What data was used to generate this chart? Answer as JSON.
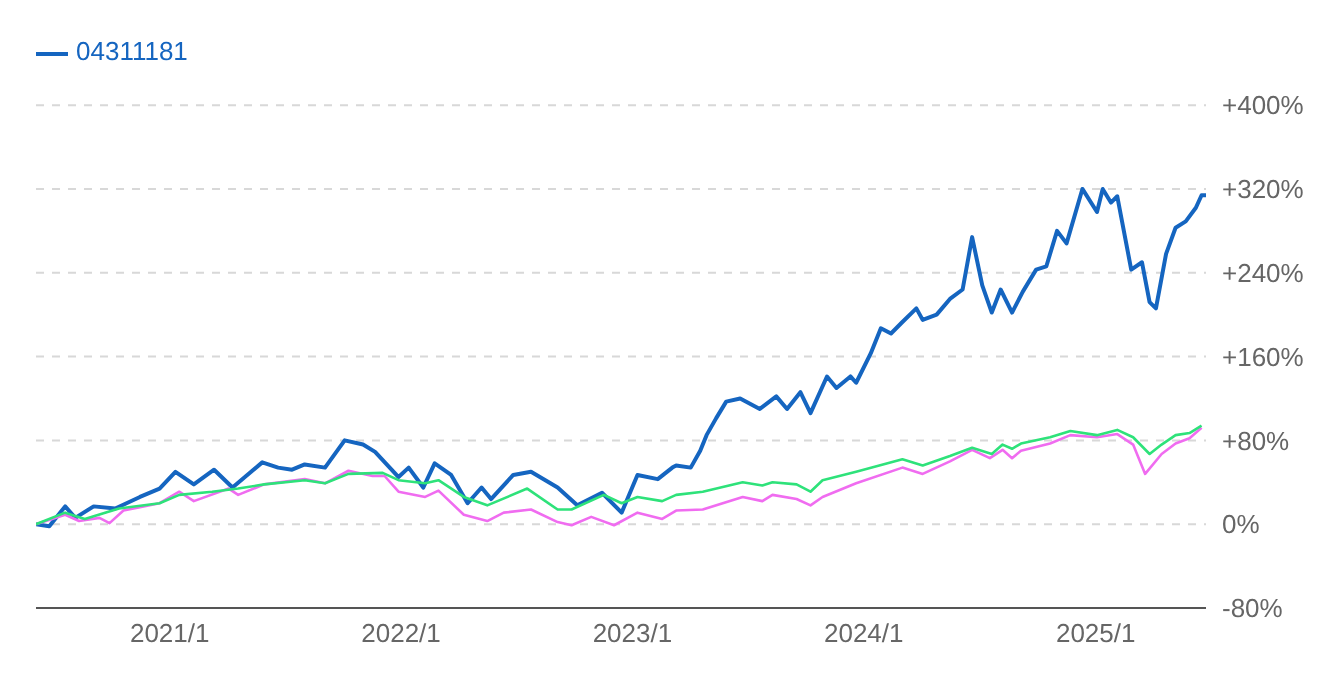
{
  "chart_data": {
    "type": "line",
    "xlim": [
      "2020-06-04",
      "2025-06-24"
    ],
    "xticks": [
      {
        "value": "2021-01",
        "label": "2021/1"
      },
      {
        "value": "2022-01",
        "label": "2022/1"
      },
      {
        "value": "2023-01",
        "label": "2023/1"
      },
      {
        "value": "2024-01",
        "label": "2024/1"
      },
      {
        "value": "2025-01",
        "label": "2025/1"
      }
    ],
    "ylim": [
      -80,
      400
    ],
    "yticks": [
      {
        "value": -80,
        "label": "-80%"
      },
      {
        "value": 0,
        "label": "0%"
      },
      {
        "value": 80,
        "label": "+80%"
      },
      {
        "value": 160,
        "label": "+160%"
      },
      {
        "value": 240,
        "label": "+240%"
      },
      {
        "value": 320,
        "label": "+320%"
      },
      {
        "value": 400,
        "label": "+400%"
      }
    ],
    "grid": "y",
    "legend": "top left",
    "marker": "none",
    "line_style": "solid",
    "series": [
      {
        "name": "04311181",
        "color": "#1565c0",
        "x": [
          "2020-06-04",
          "2020-06-25",
          "2020-07-20",
          "2020-08-05",
          "2020-09-03",
          "2020-10-07",
          "2020-11-15",
          "2020-12-16",
          "2021-01-10",
          "2021-02-08",
          "2021-03-12",
          "2021-04-10",
          "2021-05-27",
          "2021-06-21",
          "2021-07-13",
          "2021-08-02",
          "2021-09-03",
          "2021-10-04",
          "2021-11-02",
          "2021-11-21",
          "2021-12-28",
          "2022-01-13",
          "2022-02-05",
          "2022-02-23",
          "2022-03-21",
          "2022-04-16",
          "2022-05-08",
          "2022-05-23",
          "2022-06-27",
          "2022-07-25",
          "2022-09-05",
          "2022-10-06",
          "2022-11-14",
          "2022-12-15",
          "2023-01-09",
          "2023-02-10",
          "2023-03-05",
          "2023-03-11",
          "2023-04-03",
          "2023-04-18",
          "2023-04-28",
          "2023-05-13",
          "2023-05-29",
          "2023-06-20",
          "2023-07-21",
          "2023-08-16",
          "2023-09-02",
          "2023-09-23",
          "2023-10-09",
          "2023-11-04",
          "2023-11-19",
          "2023-12-11",
          "2023-12-20",
          "2024-01-12",
          "2024-01-28",
          "2024-02-13",
          "2024-03-02",
          "2024-03-24",
          "2024-04-03",
          "2024-04-25",
          "2024-05-16",
          "2024-06-05",
          "2024-06-20",
          "2024-07-06",
          "2024-07-21",
          "2024-08-04",
          "2024-08-22",
          "2024-09-08",
          "2024-09-29",
          "2024-10-15",
          "2024-11-01",
          "2024-11-16",
          "2024-12-11",
          "2025-01-03",
          "2025-01-12",
          "2025-01-25",
          "2025-02-04",
          "2025-02-26",
          "2025-03-15",
          "2025-03-27",
          "2025-04-06",
          "2025-04-22",
          "2025-05-07",
          "2025-05-23",
          "2025-06-08",
          "2025-06-17",
          "2025-06-24"
        ],
        "values": [
          0,
          -2,
          17,
          6,
          17,
          15,
          26,
          34,
          50,
          38,
          52,
          35,
          59,
          54,
          52,
          57,
          54,
          80,
          76,
          69,
          45,
          54,
          35,
          58,
          47,
          20,
          35,
          24,
          47,
          50,
          35,
          18,
          30,
          11,
          47,
          43,
          54,
          56,
          54,
          70,
          85,
          101,
          117,
          120,
          110,
          122,
          110,
          126,
          106,
          141,
          130,
          141,
          135,
          163,
          187,
          182,
          193,
          206,
          195,
          200,
          215,
          224,
          274,
          228,
          202,
          224,
          202,
          222,
          243,
          246,
          280,
          268,
          320,
          298,
          320,
          307,
          313,
          243,
          250,
          212,
          206,
          258,
          283,
          289,
          302,
          314,
          314
        ]
      },
      {
        "color": "#f06cf0",
        "x": [
          "2020-06-04",
          "2020-07-20",
          "2020-08-11",
          "2020-09-12",
          "2020-09-28",
          "2020-10-20",
          "2020-12-16",
          "2021-01-16",
          "2021-02-08",
          "2021-04-04",
          "2021-04-19",
          "2021-05-30",
          "2021-08-02",
          "2021-09-03",
          "2021-10-10",
          "2021-11-17",
          "2021-12-06",
          "2021-12-28",
          "2022-02-08",
          "2022-03-01",
          "2022-04-10",
          "2022-05-17",
          "2022-06-12",
          "2022-07-25",
          "2022-09-05",
          "2022-09-27",
          "2022-10-28",
          "2022-12-03",
          "2023-01-09",
          "2023-02-17",
          "2023-03-11",
          "2023-04-22",
          "2023-06-24",
          "2023-07-25",
          "2023-08-10",
          "2023-09-17",
          "2023-10-09",
          "2023-10-28",
          "2023-12-20",
          "2024-03-02",
          "2024-04-03",
          "2024-05-16",
          "2024-06-20",
          "2024-07-18",
          "2024-08-07",
          "2024-08-22",
          "2024-09-05",
          "2024-10-21",
          "2024-11-22",
          "2025-01-03",
          "2025-02-04",
          "2025-03-01",
          "2025-03-20",
          "2025-04-15",
          "2025-05-07",
          "2025-05-29",
          "2025-06-17"
        ],
        "values": [
          0,
          9,
          3,
          6,
          1,
          13,
          20,
          31,
          22,
          34,
          28,
          38,
          43,
          39,
          51,
          46,
          46,
          31,
          26,
          32,
          9,
          3,
          11,
          14,
          2,
          -1,
          7,
          -1,
          11,
          5,
          13,
          14,
          26,
          22,
          28,
          24,
          18,
          26,
          39,
          54,
          48,
          60,
          71,
          63,
          71,
          63,
          70,
          77,
          85,
          83,
          86,
          76,
          48,
          67,
          77,
          82,
          92
        ]
      },
      {
        "color": "#2ee27a",
        "x": [
          "2020-06-04",
          "2020-07-20",
          "2020-08-20",
          "2020-10-13",
          "2020-12-16",
          "2021-01-16",
          "2021-03-09",
          "2021-04-19",
          "2021-05-30",
          "2021-08-02",
          "2021-09-03",
          "2021-10-10",
          "2021-12-03",
          "2021-12-28",
          "2022-02-08",
          "2022-03-01",
          "2022-04-10",
          "2022-05-17",
          "2022-07-19",
          "2022-09-05",
          "2022-09-27",
          "2022-11-17",
          "2022-12-15",
          "2023-01-09",
          "2023-02-17",
          "2023-03-11",
          "2023-04-22",
          "2023-06-24",
          "2023-07-25",
          "2023-08-10",
          "2023-09-17",
          "2023-10-09",
          "2023-10-28",
          "2023-12-20",
          "2024-03-02",
          "2024-04-03",
          "2024-05-16",
          "2024-06-20",
          "2024-07-21",
          "2024-08-07",
          "2024-08-22",
          "2024-09-05",
          "2024-10-21",
          "2024-11-22",
          "2025-01-03",
          "2025-02-04",
          "2025-03-01",
          "2025-03-27",
          "2025-04-15",
          "2025-05-07",
          "2025-05-29",
          "2025-06-17"
        ],
        "values": [
          0,
          11,
          5,
          15,
          20,
          28,
          31,
          34,
          38,
          42,
          39,
          48,
          49,
          42,
          39,
          42,
          26,
          18,
          34,
          14,
          14,
          28,
          20,
          26,
          22,
          28,
          31,
          40,
          37,
          40,
          38,
          31,
          42,
          50,
          62,
          56,
          65,
          73,
          67,
          76,
          72,
          77,
          83,
          89,
          85,
          90,
          83,
          67,
          76,
          85,
          87,
          94
        ]
      }
    ]
  }
}
